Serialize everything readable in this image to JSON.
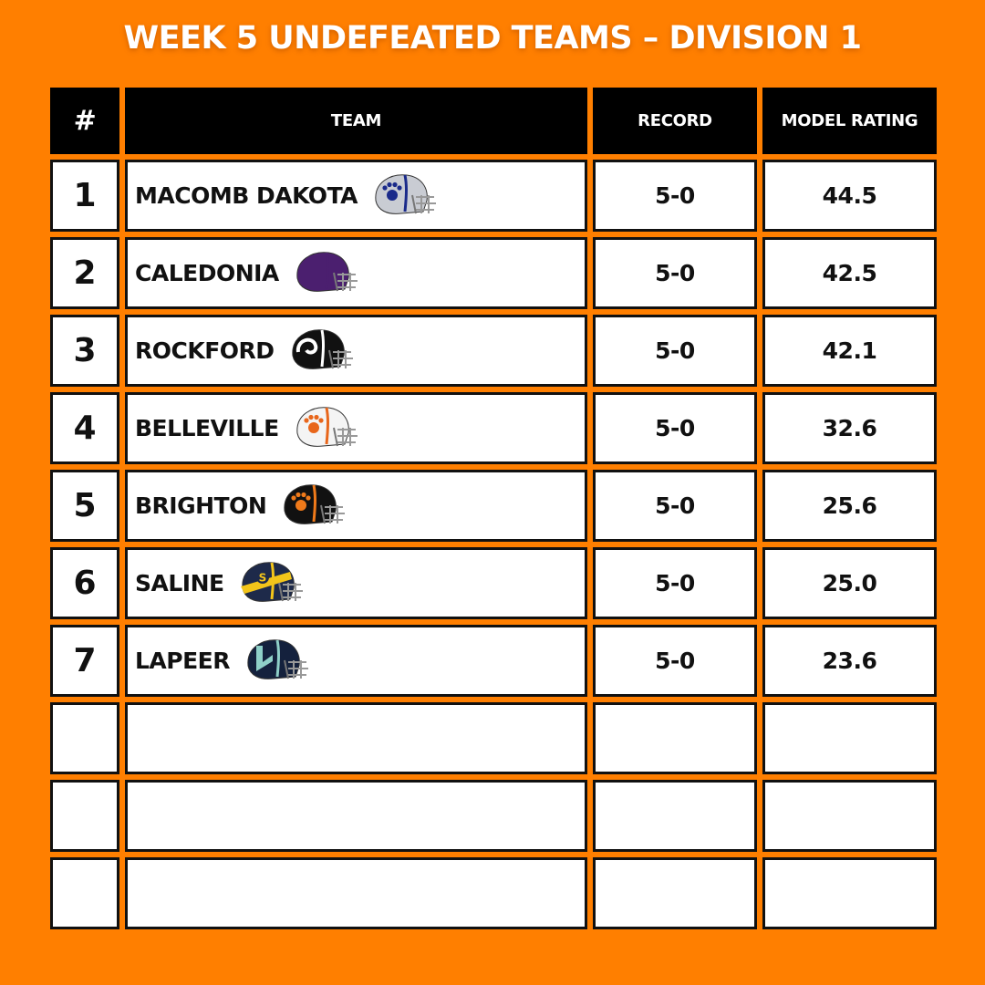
{
  "title": "WEEK 5 UNDEFEATED TEAMS – DIVISION 1",
  "table": {
    "headers": [
      "#",
      "TEAM",
      "RECORD",
      "MODEL RATING"
    ],
    "rows": [
      {
        "rank": "1",
        "team": "MACOMB DAKOTA",
        "record": "5-0",
        "rating": "44.5",
        "helmet_icon": "paw-helmet-icon",
        "helmet_color": "#c9ccd3",
        "stripe_color": "#1a2a8a",
        "logo_color": "#1a2a8a"
      },
      {
        "rank": "2",
        "team": "CALEDONIA",
        "record": "5-0",
        "rating": "42.5",
        "helmet_icon": "helmet-icon",
        "helmet_color": "#4b1f6f",
        "stripe_color": "#4b1f6f",
        "logo_color": "#4b1f6f"
      },
      {
        "rank": "3",
        "team": "ROCKFORD",
        "record": "5-0",
        "rating": "42.1",
        "helmet_icon": "ram-horn-helmet-icon",
        "helmet_color": "#111111",
        "stripe_color": "#ffffff",
        "logo_color": "#ffffff"
      },
      {
        "rank": "4",
        "team": "BELLEVILLE",
        "record": "5-0",
        "rating": "32.6",
        "helmet_icon": "paw-helmet-icon",
        "helmet_color": "#f4f4f4",
        "stripe_color": "#e8661b",
        "logo_color": "#e8661b"
      },
      {
        "rank": "5",
        "team": "BRIGHTON",
        "record": "5-0",
        "rating": "25.6",
        "helmet_icon": "paw-helmet-icon",
        "helmet_color": "#111111",
        "stripe_color": "#f07a1a",
        "logo_color": "#f07a1a"
      },
      {
        "rank": "6",
        "team": "SALINE",
        "record": "5-0",
        "rating": "25.0",
        "helmet_icon": "s-logo-helmet-icon",
        "helmet_color": "#1e2a4a",
        "stripe_color": "#f3c51a",
        "logo_color": "#f3c51a"
      },
      {
        "rank": "7",
        "team": "LAPEER",
        "record": "5-0",
        "rating": "23.6",
        "helmet_icon": "l-logo-helmet-icon",
        "helmet_color": "#14213d",
        "stripe_color": "#8fd0c8",
        "logo_color": "#8fd0c8"
      },
      {
        "rank": "",
        "team": "",
        "record": "",
        "rating": ""
      },
      {
        "rank": "",
        "team": "",
        "record": "",
        "rating": ""
      },
      {
        "rank": "",
        "team": "",
        "record": "",
        "rating": ""
      }
    ]
  }
}
